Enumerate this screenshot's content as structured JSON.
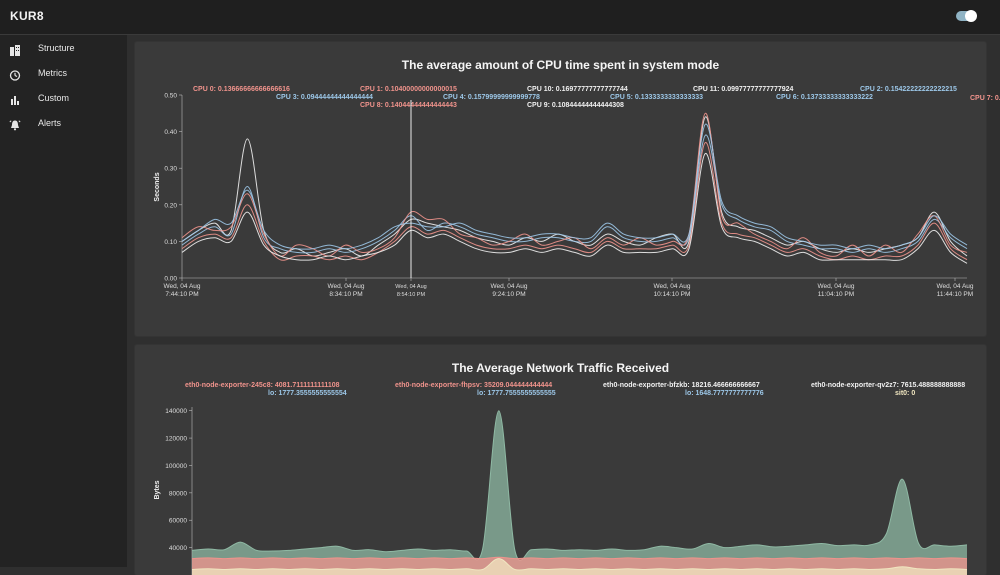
{
  "app": {
    "title": "KUR8"
  },
  "sidebar": {
    "items": [
      {
        "label": "Structure",
        "icon": "building-icon"
      },
      {
        "label": "Metrics",
        "icon": "stopwatch-icon"
      },
      {
        "label": "Custom",
        "icon": "bar-chart-icon"
      },
      {
        "label": "Alerts",
        "icon": "alarm-bell-icon"
      }
    ]
  },
  "colors": {
    "salmon": "#f0938c",
    "blue": "#9cc7e8",
    "white": "#f0f0f0",
    "green": "#8fb9a4",
    "cream": "#f0e6c0",
    "accent": "#8fb3c4"
  },
  "chart_data": [
    {
      "type": "line",
      "title": "The average amount of CPU time spent in system mode",
      "ylabel": "Seconds",
      "ylim": [
        0,
        0.5
      ],
      "yticks": [
        "0.00",
        "0.10",
        "0.20",
        "0.30",
        "0.40",
        "0.50"
      ],
      "x_ticks": [
        {
          "l1": "Wed, 04 Aug",
          "l2": "7:44:10 PM"
        },
        {
          "l1": "Wed, 04 Aug",
          "l2": "8:34:10 PM"
        },
        {
          "l1": "Wed, 04 Aug",
          "l2": "8:54:10 PM"
        },
        {
          "l1": "Wed, 04 Aug",
          "l2": "9:24:10 PM"
        },
        {
          "l1": "Wed, 04 Aug",
          "l2": "10:14:10 PM"
        },
        {
          "l1": "Wed, 04 Aug",
          "l2": "11:04:10 PM"
        },
        {
          "l1": "Wed, 04 Aug",
          "l2": "11:44:10 PM"
        }
      ],
      "legend": [
        {
          "text": "CPU 0: 0.13666666666666616",
          "color": "#f0938c"
        },
        {
          "text": "CPU 1: 0.10400000000000015",
          "color": "#f0938c"
        },
        {
          "text": "CPU 10: 0.16977777777777744",
          "color": "#f0f0f0"
        },
        {
          "text": "CPU 11: 0.09977777777777924",
          "color": "#f0f0f0"
        },
        {
          "text": "CPU 2: 0.15422222222222215",
          "color": "#9cc7e8"
        },
        {
          "text": "CPU 7: 0.",
          "color": "#f0938c"
        },
        {
          "text": "CPU 3: 0.09444444444444444",
          "color": "#9cc7e8"
        },
        {
          "text": "CPU 4: 0.15799999999999778",
          "color": "#9cc7e8"
        },
        {
          "text": "CPU 5: 0.1333333333333333",
          "color": "#9cc7e8"
        },
        {
          "text": "CPU 6: 0.13733333333333222",
          "color": "#9cc7e8"
        },
        {
          "text": "CPU 8: 0.14044444444444443",
          "color": "#f0938c"
        },
        {
          "text": "CPU 9: 0.10844444444444308",
          "color": "#f0f0f0"
        }
      ],
      "x": [
        0,
        5,
        10,
        15,
        20,
        25,
        30,
        35,
        40,
        45,
        50,
        55,
        60,
        65,
        70,
        75,
        80,
        85,
        90,
        95,
        100,
        105,
        110,
        115,
        120,
        125,
        130,
        135,
        140,
        145,
        150,
        155,
        160,
        165,
        170,
        175,
        180,
        185,
        190,
        195,
        200,
        205,
        210,
        215,
        220,
        225,
        230,
        235,
        240
      ],
      "series": [
        {
          "color": "#f0f0f0",
          "values": [
            0.1,
            0.13,
            0.15,
            0.13,
            0.38,
            0.13,
            0.07,
            0.08,
            0.06,
            0.07,
            0.08,
            0.06,
            0.09,
            0.12,
            0.16,
            0.15,
            0.14,
            0.13,
            0.11,
            0.1,
            0.09,
            0.11,
            0.1,
            0.12,
            0.1,
            0.09,
            0.12,
            0.1,
            0.09,
            0.11,
            0.12,
            0.1,
            0.44,
            0.18,
            0.14,
            0.13,
            0.11,
            0.09,
            0.1,
            0.08,
            0.07,
            0.08,
            0.07,
            0.08,
            0.09,
            0.11,
            0.18,
            0.1,
            0.06
          ]
        },
        {
          "color": "#9cc7e8",
          "values": [
            0.09,
            0.12,
            0.14,
            0.12,
            0.25,
            0.11,
            0.08,
            0.07,
            0.07,
            0.08,
            0.07,
            0.08,
            0.1,
            0.13,
            0.17,
            0.13,
            0.15,
            0.14,
            0.12,
            0.11,
            0.1,
            0.1,
            0.11,
            0.11,
            0.1,
            0.1,
            0.14,
            0.11,
            0.1,
            0.1,
            0.11,
            0.11,
            0.39,
            0.2,
            0.16,
            0.14,
            0.13,
            0.1,
            0.09,
            0.08,
            0.08,
            0.07,
            0.08,
            0.07,
            0.08,
            0.1,
            0.16,
            0.11,
            0.08
          ]
        },
        {
          "color": "#f0938c",
          "values": [
            0.11,
            0.14,
            0.13,
            0.14,
            0.23,
            0.12,
            0.06,
            0.09,
            0.08,
            0.06,
            0.09,
            0.07,
            0.08,
            0.11,
            0.18,
            0.16,
            0.16,
            0.12,
            0.11,
            0.09,
            0.1,
            0.12,
            0.09,
            0.1,
            0.11,
            0.08,
            0.11,
            0.09,
            0.11,
            0.09,
            0.1,
            0.12,
            0.45,
            0.17,
            0.15,
            0.12,
            0.1,
            0.08,
            0.11,
            0.07,
            0.06,
            0.09,
            0.06,
            0.09,
            0.07,
            0.12,
            0.17,
            0.09,
            0.07
          ]
        },
        {
          "color": "#f0938c",
          "values": [
            0.08,
            0.11,
            0.12,
            0.11,
            0.2,
            0.1,
            0.05,
            0.06,
            0.06,
            0.05,
            0.06,
            0.05,
            0.07,
            0.1,
            0.14,
            0.12,
            0.13,
            0.11,
            0.09,
            0.08,
            0.08,
            0.09,
            0.08,
            0.09,
            0.08,
            0.07,
            0.1,
            0.08,
            0.08,
            0.08,
            0.09,
            0.09,
            0.37,
            0.15,
            0.12,
            0.11,
            0.09,
            0.07,
            0.08,
            0.06,
            0.05,
            0.06,
            0.05,
            0.06,
            0.06,
            0.09,
            0.15,
            0.08,
            0.05
          ]
        },
        {
          "color": "#9cc7e8",
          "values": [
            0.1,
            0.13,
            0.16,
            0.15,
            0.24,
            0.13,
            0.09,
            0.08,
            0.08,
            0.09,
            0.08,
            0.09,
            0.11,
            0.14,
            0.15,
            0.14,
            0.14,
            0.15,
            0.13,
            0.12,
            0.11,
            0.11,
            0.12,
            0.12,
            0.11,
            0.11,
            0.15,
            0.12,
            0.11,
            0.11,
            0.12,
            0.12,
            0.42,
            0.21,
            0.17,
            0.15,
            0.14,
            0.11,
            0.1,
            0.09,
            0.09,
            0.08,
            0.09,
            0.08,
            0.09,
            0.11,
            0.17,
            0.12,
            0.09
          ]
        },
        {
          "color": "#f0f0f0",
          "values": [
            0.07,
            0.1,
            0.11,
            0.1,
            0.18,
            0.09,
            0.06,
            0.05,
            0.05,
            0.06,
            0.05,
            0.06,
            0.07,
            0.09,
            0.13,
            0.11,
            0.12,
            0.1,
            0.08,
            0.07,
            0.07,
            0.08,
            0.07,
            0.08,
            0.07,
            0.06,
            0.09,
            0.07,
            0.07,
            0.07,
            0.08,
            0.08,
            0.34,
            0.14,
            0.11,
            0.1,
            0.08,
            0.06,
            0.07,
            0.05,
            0.05,
            0.05,
            0.05,
            0.05,
            0.05,
            0.08,
            0.13,
            0.07,
            0.04
          ]
        }
      ]
    },
    {
      "type": "area",
      "title": "The Average Network Traffic Received",
      "ylabel": "Bytes",
      "ylim": [
        20000,
        150000
      ],
      "yticks": [
        "40000",
        "60000",
        "80000",
        "100000",
        "120000",
        "140000"
      ],
      "legend": [
        {
          "text": "eth0-node-exporter-245c8: 4081.7111111111108",
          "color": "#f0938c"
        },
        {
          "text": "eth0-node-exporter-fhpsv: 35209.044444444444",
          "color": "#f0938c"
        },
        {
          "text": "eth0-node-exporter-bfzkb: 18216.466666666667",
          "color": "#f0f0f0"
        },
        {
          "text": "eth0-node-exporter-qv2z7: 7615.488888888888",
          "color": "#f0f0f0"
        },
        {
          "text": "lo: 1777.3555555555554",
          "color": "#9cc7e8"
        },
        {
          "text": "lo: 1777.7555555555555",
          "color": "#9cc7e8"
        },
        {
          "text": "lo: 1648.7777777777776",
          "color": "#9cc7e8"
        },
        {
          "text": "sit0: 0",
          "color": "#f0e6c0"
        }
      ],
      "x": [
        0,
        5,
        10,
        15,
        20,
        25,
        30,
        35,
        40,
        45,
        50,
        55,
        60,
        65,
        70,
        75,
        80,
        85,
        90,
        95,
        100,
        105,
        110,
        115,
        120,
        125,
        130,
        135,
        140,
        145,
        150,
        155,
        160,
        165,
        170,
        175,
        180,
        185,
        190,
        195,
        200,
        205,
        210,
        215,
        220,
        225,
        230,
        235,
        240
      ],
      "series": [
        {
          "color": "#8fb9a4",
          "values": [
            38000,
            39000,
            38500,
            44000,
            38000,
            37500,
            38000,
            39000,
            40000,
            41000,
            38000,
            38500,
            37000,
            38000,
            39000,
            38000,
            38500,
            37500,
            39000,
            140000,
            38000,
            38500,
            39000,
            38000,
            38500,
            38000,
            39000,
            38000,
            38500,
            41000,
            40000,
            39000,
            43000,
            40000,
            41000,
            42000,
            40500,
            41000,
            42000,
            43000,
            41500,
            42000,
            42000,
            50000,
            90000,
            43000,
            42000,
            41000,
            42000
          ]
        },
        {
          "color": "#f0938c",
          "values": [
            32000,
            32500,
            32000,
            32500,
            32000,
            32500,
            32000,
            32500,
            32000,
            32500,
            32000,
            32500,
            32000,
            32500,
            32000,
            32500,
            32000,
            32500,
            32000,
            33000,
            32000,
            32500,
            32000,
            32500,
            32000,
            32500,
            32000,
            32500,
            32000,
            32500,
            32000,
            32500,
            32000,
            32500,
            32000,
            32500,
            32000,
            32500,
            32000,
            32500,
            32000,
            32500,
            32000,
            32500,
            32000,
            32500,
            32000,
            32500,
            32000
          ]
        },
        {
          "color": "#f0e6c0",
          "values": [
            24000,
            24500,
            24000,
            24500,
            24000,
            24500,
            24000,
            24500,
            24000,
            24500,
            24000,
            24500,
            24000,
            24500,
            24000,
            24500,
            24000,
            24500,
            24000,
            32000,
            24000,
            24500,
            24000,
            24500,
            24000,
            24500,
            24000,
            24500,
            24000,
            24500,
            24000,
            24500,
            24000,
            24500,
            24000,
            24500,
            24000,
            24500,
            24000,
            24500,
            24000,
            24500,
            24000,
            24500,
            26000,
            24500,
            24000,
            24500,
            24000
          ]
        }
      ]
    }
  ]
}
